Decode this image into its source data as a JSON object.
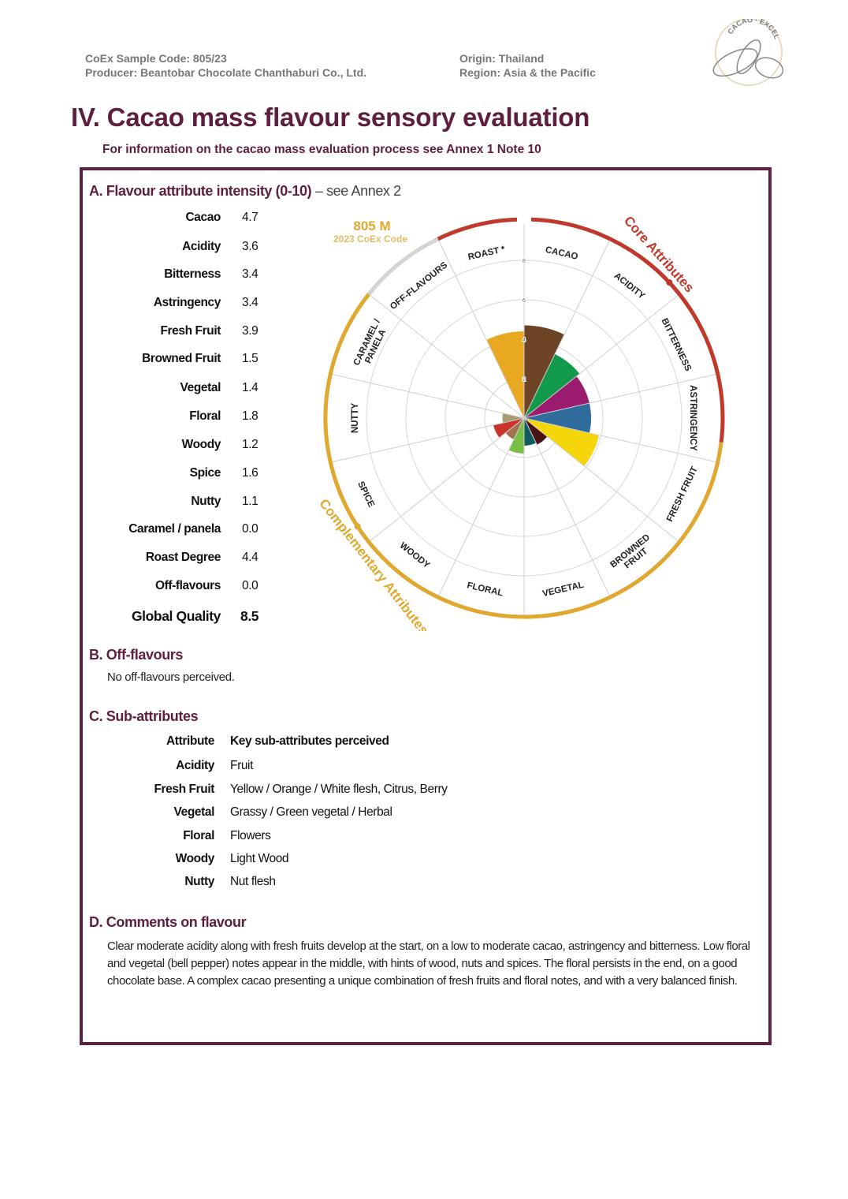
{
  "header": {
    "sample_code": "CoEx Sample Code: 805/23",
    "producer": "Producer: Beantobar Chocolate Chanthaburi Co., Ltd.",
    "origin": "Origin: Thailand",
    "region": "Region: Asia & the Pacific",
    "logo_text": "CACAO of EXCELLENCE"
  },
  "title": "IV. Cacao mass flavour sensory evaluation",
  "subtitle": "For information on the cacao mass evaluation process see Annex 1 Note 10",
  "section_a": {
    "heading": "A. Flavour attribute intensity (0-10)",
    "heading_suffix": " – see Annex 2",
    "attributes": [
      {
        "label": "Cacao",
        "value": "4.7"
      },
      {
        "label": "Acidity",
        "value": "3.6"
      },
      {
        "label": "Bitterness",
        "value": "3.4"
      },
      {
        "label": "Astringency",
        "value": "3.4"
      },
      {
        "label": "Fresh Fruit",
        "value": "3.9"
      },
      {
        "label": "Browned Fruit",
        "value": "1.5"
      },
      {
        "label": "Vegetal",
        "value": "1.4"
      },
      {
        "label": "Floral",
        "value": "1.8"
      },
      {
        "label": "Woody",
        "value": "1.2"
      },
      {
        "label": "Spice",
        "value": "1.6"
      },
      {
        "label": "Nutty",
        "value": "1.1"
      },
      {
        "label": "Caramel / panela",
        "value": "0.0"
      },
      {
        "label": "Roast Degree",
        "value": "4.4"
      },
      {
        "label": "Off-flavours",
        "value": "0.0"
      }
    ],
    "global_quality": {
      "label": "Global Quality",
      "value": "8.5"
    }
  },
  "chart_data": {
    "type": "polar-bar",
    "code": "805 M",
    "code_sub": "2023 CoEx Code",
    "group_core": "Core Attributes",
    "group_complementary": "Complementary Attributes",
    "rlim": [
      0,
      10
    ],
    "rticks": [
      "2",
      "4",
      "6",
      "8",
      "10"
    ],
    "categories": [
      "CACAO",
      "ACIDITY",
      "BITTERNESS",
      "ASTRINGENCY",
      "FRESH FRUIT",
      "BROWNED FRUIT",
      "VEGETAL",
      "FLORAL",
      "WOODY",
      "SPICE",
      "NUTTY",
      "CARAMEL / PANELA",
      "OFF-FLAVOURS",
      "ROAST *"
    ],
    "values": [
      4.7,
      3.6,
      3.4,
      3.4,
      3.9,
      1.5,
      1.4,
      1.8,
      1.2,
      1.6,
      1.1,
      0.0,
      0.0,
      4.4
    ],
    "colors": [
      "#6e4426",
      "#119a4b",
      "#9b1c6e",
      "#306c9b",
      "#f4d60a",
      "#4a1212",
      "#0f5b60",
      "#78c043",
      "#a0754e",
      "#c9332b",
      "#a69d72",
      "#d9a84a",
      "#bdbdbd",
      "#e9a821"
    ],
    "ring_colors": {
      "core": "#c0392b",
      "complementary": "#e0a82e",
      "off": "#d4d4d4"
    }
  },
  "section_b": {
    "heading": "B. Off-flavours",
    "text": "No off-flavours perceived."
  },
  "section_c": {
    "heading": "C. Sub-attributes",
    "col_attribute": "Attribute",
    "col_sub": "Key sub-attributes perceived",
    "rows": [
      {
        "attribute": "Acidity",
        "sub": "Fruit"
      },
      {
        "attribute": "Fresh Fruit",
        "sub": "Yellow / Orange / White flesh, Citrus, Berry"
      },
      {
        "attribute": "Vegetal",
        "sub": "Grassy / Green vegetal / Herbal"
      },
      {
        "attribute": "Floral",
        "sub": "Flowers"
      },
      {
        "attribute": "Woody",
        "sub": "Light Wood"
      },
      {
        "attribute": "Nutty",
        "sub": "Nut flesh"
      }
    ]
  },
  "section_d": {
    "heading": "D. Comments on flavour",
    "text": "Clear moderate acidity along with fresh fruits develop at the start, on a low to moderate cacao, astringency and bitterness. Low floral and vegetal (bell pepper) notes appear in the middle, with hints of wood, nuts and spices. The floral persists in the end, on a good chocolate base. A complex cacao presenting a unique combination of fresh fruits and floral notes, and with a very balanced finish."
  }
}
